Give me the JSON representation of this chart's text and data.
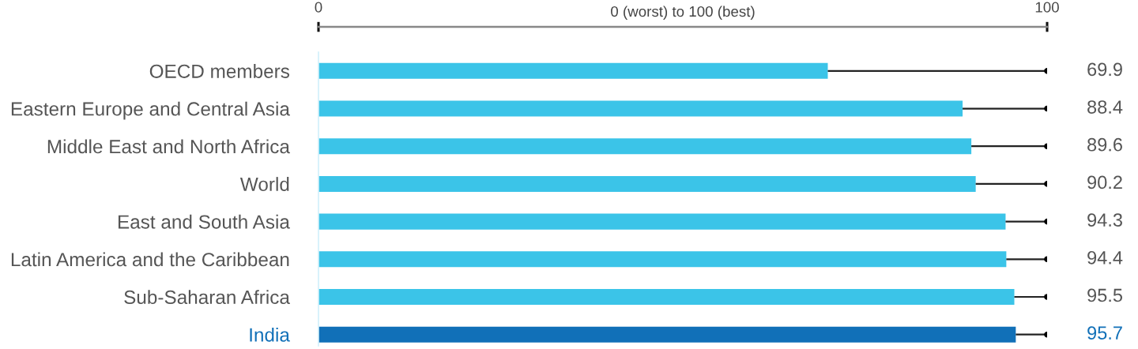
{
  "chart_data": {
    "type": "bar",
    "orientation": "horizontal",
    "xlabel": "0 (worst) to 100 (best)",
    "categories": [
      "OECD members",
      "Eastern Europe and Central Asia",
      "Middle East and North Africa",
      "World",
      "East and South Asia",
      "Latin America and the Caribbean",
      "Sub-Saharan Africa",
      "India"
    ],
    "series": [
      {
        "values": [
          69.9,
          88.4,
          89.6,
          90.2,
          94.3,
          94.4,
          95.5,
          95.7
        ],
        "colors": [
          "#3bc4e8",
          "#3bc4e8",
          "#3bc4e8",
          "#3bc4e8",
          "#3bc4e8",
          "#3bc4e8",
          "#3bc4e8",
          "#1170b8"
        ],
        "errors": [
          [
            69.9,
            100
          ],
          [
            88.4,
            100
          ],
          [
            89.6,
            100
          ],
          [
            90.2,
            100
          ],
          [
            94.3,
            100
          ],
          [
            94.4,
            100
          ],
          [
            95.5,
            100
          ],
          [
            95.7,
            100
          ]
        ],
        "value_labels": [
          "69.9",
          "88.4",
          "89.6",
          "90.2",
          "94.3",
          "94.4",
          "95.5",
          "95.7"
        ]
      },
      {
        "type": "scatter",
        "values": [
          100,
          100,
          100,
          100,
          100,
          100,
          100,
          100
        ],
        "color": "#000000",
        "marker": "circle"
      }
    ],
    "xlim": [
      0,
      100
    ],
    "xticks": [
      0,
      100
    ]
  }
}
